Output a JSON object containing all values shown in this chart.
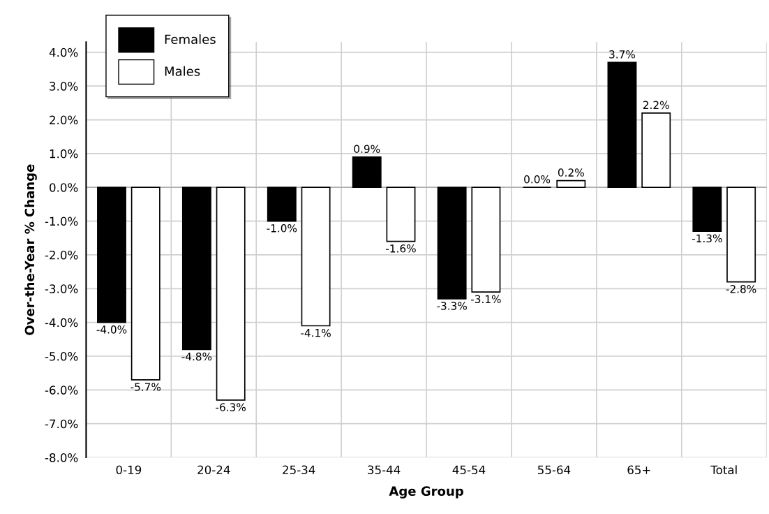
{
  "chart_data": {
    "type": "bar",
    "xlabel": "Age Group",
    "ylabel": "Over-the-Year % Change",
    "categories": [
      "0-19",
      "20-24",
      "25-34",
      "35-44",
      "45-54",
      "55-64",
      "65+",
      "Total"
    ],
    "series": [
      {
        "name": "Females",
        "color": "#000000",
        "values": [
          -4.0,
          -4.8,
          -1.0,
          0.9,
          -3.3,
          0.0,
          3.7,
          -1.3
        ],
        "value_labels": [
          "-4.0%",
          "-4.8%",
          "-1.0%",
          "0.9%",
          "-3.3%",
          "0.0%",
          "3.7%",
          "-1.3%"
        ]
      },
      {
        "name": "Males",
        "color": "#ffffff",
        "values": [
          -5.7,
          -6.3,
          -4.1,
          -1.6,
          -3.1,
          0.2,
          2.2,
          -2.8
        ],
        "value_labels": [
          "-5.7%",
          "-6.3%",
          "-4.1%",
          "-1.6%",
          "-3.1%",
          "0.2%",
          "2.2%",
          "-2.8%"
        ]
      }
    ],
    "ylim": [
      -8,
      4.3
    ],
    "yticks": [
      {
        "value": -8,
        "label": "-8.0%"
      },
      {
        "value": -7,
        "label": "-7.0%"
      },
      {
        "value": -6,
        "label": "-6.0%"
      },
      {
        "value": -5,
        "label": "-5.0%"
      },
      {
        "value": -4,
        "label": "-4.0%"
      },
      {
        "value": -3,
        "label": "-3.0%"
      },
      {
        "value": -2,
        "label": "-2.0%"
      },
      {
        "value": -1,
        "label": "-1.0%"
      },
      {
        "value": 0,
        "label": "0.0%"
      },
      {
        "value": 1,
        "label": "1.0%"
      },
      {
        "value": 2,
        "label": "2.0%"
      },
      {
        "value": 3,
        "label": "3.0%"
      },
      {
        "value": 4,
        "label": "4.0%"
      }
    ],
    "grid": true,
    "legend": "top left"
  }
}
